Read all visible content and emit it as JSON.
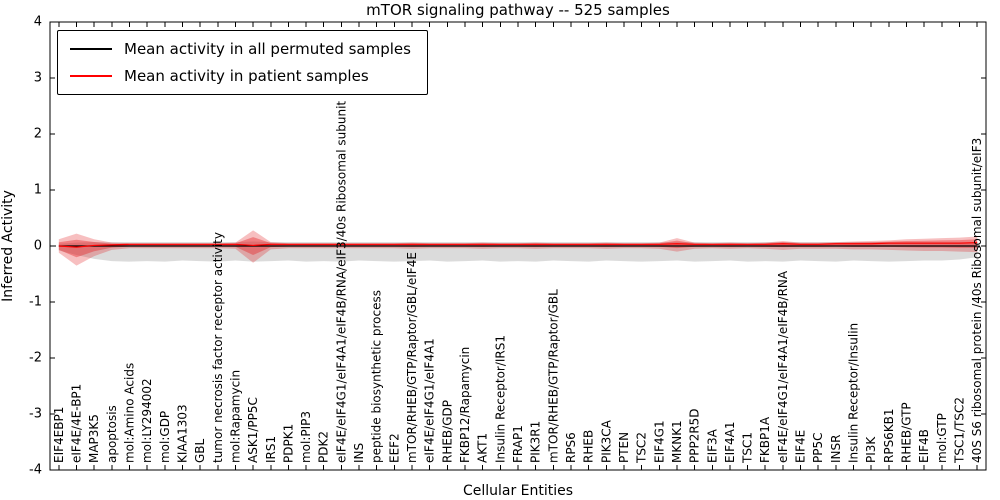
{
  "chart_data": {
    "type": "line",
    "title": "mTOR signaling pathway -- 525 samples",
    "xlabel": "Cellular Entities",
    "ylabel": "Inferred Activity",
    "ylim": [
      -4,
      4
    ],
    "yticks": [
      -4,
      -3,
      -2,
      -1,
      0,
      1,
      2,
      3,
      4
    ],
    "grid": false,
    "legend_position": "upper left",
    "categories": [
      "EIF4EBP1",
      "eIF4E/4E-BP1",
      "MAP3K5",
      "apoptosis",
      "mol:Amino Acids",
      "mol:LY294002",
      "mol:GDP",
      "KIAA1303",
      "GBL",
      "tumor necrosis factor receptor activity",
      "mol:Rapamycin",
      "ASK1/PP5C",
      "IRS1",
      "PDPK1",
      "mol:PIP3",
      "PDK2",
      "eIF4E/eIF4G1/eIF4A1/eIF4B/RNA/eIF3/40s Ribosomal subunit",
      "INS",
      "peptide biosynthetic process",
      "EEF2",
      "mTOR/RHEB/GTP/Raptor/GBL/eIF4E",
      "eIF4E/eIF4G1/eIF4A1",
      "RHEB/GDP",
      "FKBP12/Rapamycin",
      "AKT1",
      "Insulin Receptor/IRS1",
      "FRAP1",
      "PIK3R1",
      "mTOR/RHEB/GTP/Raptor/GBL",
      "RPS6",
      "RHEB",
      "PIK3CA",
      "PTEN",
      "TSC2",
      "EIF4G1",
      "MKNK1",
      "PPP2R5D",
      "EIF3A",
      "EIF4A1",
      "TSC1",
      "FKBP1A",
      "eIF4E/eIF4G1/eIF4A1/eIF4B/RNA",
      "EIF4E",
      "PP5C",
      "INSR",
      "Insulin Receptor/Insulin",
      "PI3K",
      "RPS6KB1",
      "RHEB/GTP",
      "EIF4B",
      "mol:GTP",
      "TSC1/TSC2",
      "40S S6 ribosomal protein /40s Ribosomal subunit/eIF3"
    ],
    "series": [
      {
        "name": "Mean activity in all permuted samples",
        "color": "#000000",
        "band_color": "#999999",
        "band_opacity": 0.35,
        "mean": [
          0,
          0,
          0,
          0,
          0,
          0,
          0,
          0,
          0,
          0,
          0,
          0,
          0,
          0,
          0,
          0,
          0,
          0,
          0,
          0,
          0,
          0,
          0,
          0,
          0,
          0,
          0,
          0,
          0,
          0,
          0,
          0,
          0,
          0,
          0,
          0,
          0,
          0,
          0,
          0,
          0,
          0,
          0,
          0,
          0,
          0,
          0,
          0,
          0,
          0,
          0,
          0,
          0
        ],
        "upper": [
          0.04,
          0.06,
          0.07,
          0.07,
          0.07,
          0.07,
          0.07,
          0.07,
          0.07,
          0.07,
          0.07,
          0.08,
          0.07,
          0.07,
          0.07,
          0.07,
          0.07,
          0.07,
          0.07,
          0.07,
          0.07,
          0.07,
          0.07,
          0.07,
          0.07,
          0.07,
          0.07,
          0.07,
          0.07,
          0.07,
          0.07,
          0.07,
          0.07,
          0.07,
          0.07,
          0.07,
          0.07,
          0.07,
          0.07,
          0.07,
          0.07,
          0.07,
          0.07,
          0.07,
          0.07,
          0.07,
          0.07,
          0.07,
          0.07,
          0.07,
          0.07,
          0.07,
          0.06
        ],
        "lower": [
          -0.08,
          -0.16,
          -0.23,
          -0.27,
          -0.28,
          -0.27,
          -0.28,
          -0.26,
          -0.27,
          -0.28,
          -0.26,
          -0.28,
          -0.27,
          -0.26,
          -0.28,
          -0.27,
          -0.28,
          -0.26,
          -0.27,
          -0.28,
          -0.27,
          -0.26,
          -0.28,
          -0.27,
          -0.26,
          -0.28,
          -0.27,
          -0.28,
          -0.26,
          -0.27,
          -0.28,
          -0.26,
          -0.27,
          -0.28,
          -0.27,
          -0.26,
          -0.28,
          -0.27,
          -0.26,
          -0.28,
          -0.27,
          -0.28,
          -0.26,
          -0.27,
          -0.28,
          -0.26,
          -0.27,
          -0.28,
          -0.27,
          -0.26,
          -0.26,
          -0.24,
          -0.2
        ]
      },
      {
        "name": "Mean activity in patient samples",
        "color": "#ff0000",
        "band_color": "#e41a1c",
        "band_opacity": 0.28,
        "mean": [
          0.0,
          -0.02,
          0.01,
          0.02,
          0.03,
          0.03,
          0.03,
          0.03,
          0.03,
          0.03,
          0.03,
          0.01,
          0.03,
          0.03,
          0.03,
          0.03,
          0.03,
          0.03,
          0.03,
          0.03,
          0.03,
          0.03,
          0.03,
          0.03,
          0.03,
          0.03,
          0.03,
          0.03,
          0.03,
          0.03,
          0.03,
          0.03,
          0.03,
          0.03,
          0.03,
          0.04,
          0.03,
          0.03,
          0.03,
          0.03,
          0.03,
          0.04,
          0.03,
          0.03,
          0.04,
          0.04,
          0.04,
          0.05,
          0.05,
          0.05,
          0.05,
          0.05,
          0.06
        ],
        "upper": [
          0.12,
          0.22,
          0.12,
          0.06,
          0.05,
          0.05,
          0.05,
          0.05,
          0.05,
          0.05,
          0.06,
          0.28,
          0.07,
          0.05,
          0.05,
          0.05,
          0.05,
          0.05,
          0.05,
          0.05,
          0.06,
          0.05,
          0.05,
          0.05,
          0.06,
          0.05,
          0.05,
          0.06,
          0.05,
          0.05,
          0.05,
          0.06,
          0.05,
          0.05,
          0.06,
          0.14,
          0.06,
          0.05,
          0.06,
          0.05,
          0.06,
          0.09,
          0.06,
          0.06,
          0.07,
          0.08,
          0.09,
          0.1,
          0.12,
          0.13,
          0.14,
          0.15,
          0.17
        ],
        "lower": [
          -0.12,
          -0.35,
          -0.18,
          -0.07,
          -0.04,
          -0.04,
          -0.04,
          -0.04,
          -0.04,
          -0.04,
          -0.05,
          -0.3,
          -0.06,
          -0.04,
          -0.04,
          -0.04,
          -0.04,
          -0.04,
          -0.04,
          -0.04,
          -0.05,
          -0.04,
          -0.04,
          -0.04,
          -0.05,
          -0.04,
          -0.04,
          -0.05,
          -0.04,
          -0.04,
          -0.04,
          -0.05,
          -0.04,
          -0.04,
          -0.05,
          -0.1,
          -0.05,
          -0.04,
          -0.05,
          -0.04,
          -0.05,
          -0.07,
          -0.05,
          -0.05,
          -0.05,
          -0.06,
          -0.06,
          -0.07,
          -0.08,
          -0.09,
          -0.09,
          -0.1,
          -0.11
        ]
      }
    ],
    "zero_line": {
      "value": 0,
      "style": "dashed",
      "color": "#000000"
    }
  },
  "legend": {
    "entries": [
      {
        "label": "Mean activity in all permuted samples",
        "color": "#000000"
      },
      {
        "label": "Mean activity in patient samples",
        "color": "#ff0000"
      }
    ]
  }
}
